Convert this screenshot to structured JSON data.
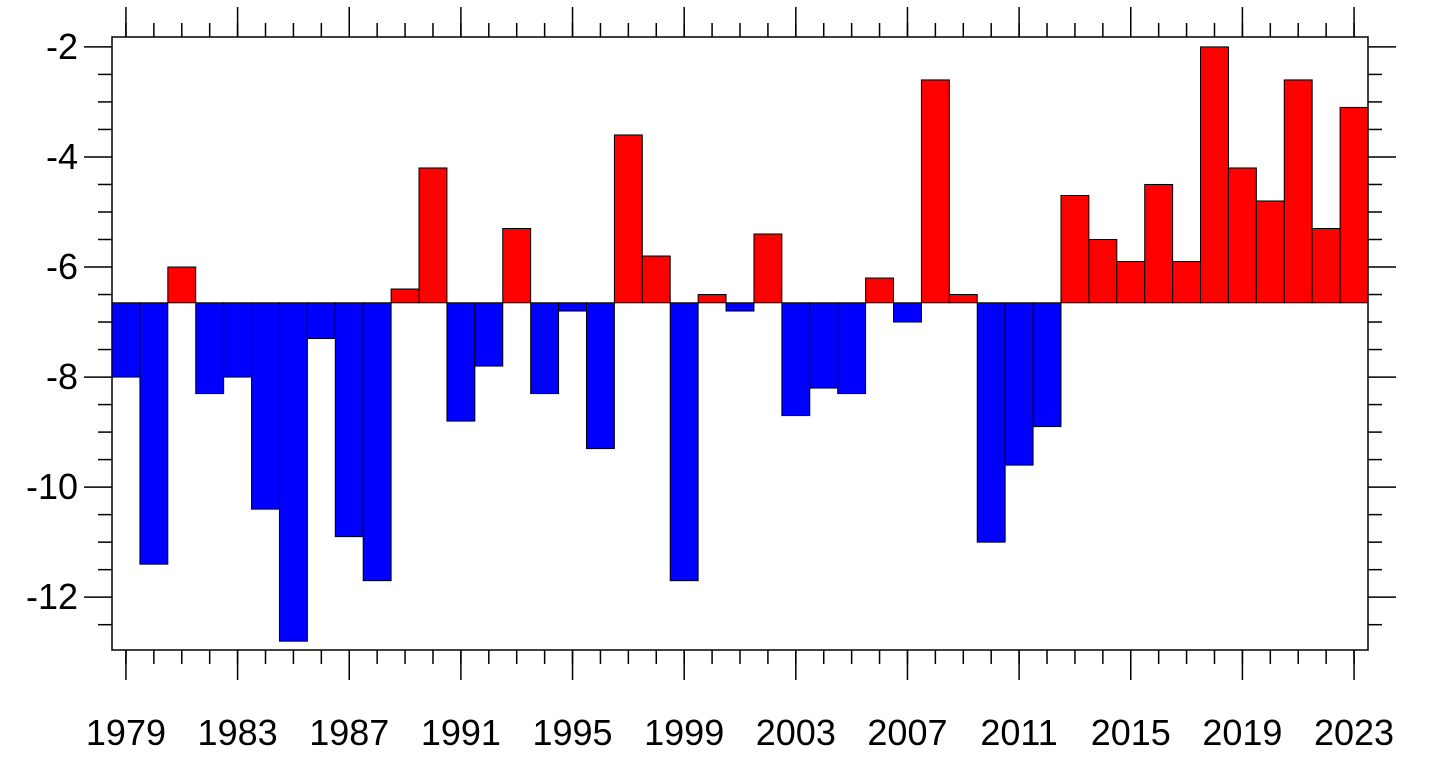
{
  "chart_data": {
    "type": "bar",
    "x": [
      1979,
      1980,
      1981,
      1982,
      1983,
      1984,
      1985,
      1986,
      1987,
      1988,
      1989,
      1990,
      1991,
      1992,
      1993,
      1994,
      1995,
      1996,
      1997,
      1998,
      1999,
      2000,
      2001,
      2002,
      2003,
      2004,
      2005,
      2006,
      2007,
      2008,
      2009,
      2010,
      2011,
      2012,
      2013,
      2014,
      2015,
      2016,
      2017,
      2018,
      2019,
      2020,
      2021,
      2022,
      2023
    ],
    "values": [
      -8.0,
      -11.4,
      -6.0,
      -8.3,
      -8.0,
      -10.4,
      -12.8,
      -7.3,
      -10.9,
      -11.7,
      -6.4,
      -4.2,
      -8.8,
      -7.8,
      -5.3,
      -8.3,
      -6.8,
      -9.3,
      -3.6,
      -5.8,
      -11.7,
      -6.5,
      -6.8,
      -5.4,
      -8.7,
      -8.2,
      -8.3,
      -6.2,
      -7.0,
      -2.6,
      -6.5,
      -11.0,
      -9.6,
      -8.9,
      -4.7,
      -5.5,
      -5.9,
      -4.5,
      -5.9,
      -2.0,
      -4.2,
      -4.8,
      -2.6,
      -5.3,
      -3.1
    ],
    "reference": -6.65,
    "above_color": "#ff0000",
    "below_color": "#0000ff",
    "xlim": [
      1978.5,
      2023.5
    ],
    "xticks": [
      1979,
      1983,
      1987,
      1991,
      1995,
      1999,
      2003,
      2007,
      2011,
      2015,
      2019,
      2023
    ],
    "ylim": [
      -12.96,
      -1.82
    ],
    "yticks": [
      -12,
      -10,
      -8,
      -6,
      -4,
      -2
    ],
    "yminorticks": [
      -12.5,
      -11.5,
      -11,
      -10.5,
      -9.5,
      -9,
      -8.5,
      -7.5,
      -7,
      -6.5,
      -5.5,
      -5,
      -4.5,
      -3.5,
      -3,
      -2.5
    ]
  }
}
